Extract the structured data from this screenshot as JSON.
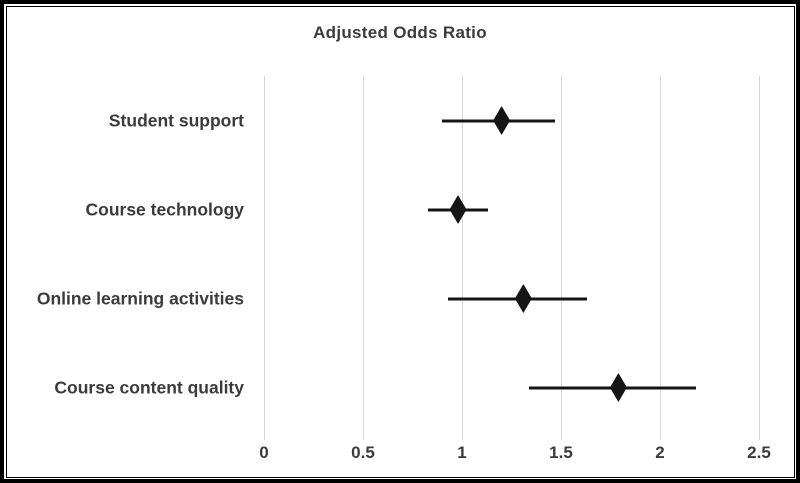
{
  "title": "Adjusted Odds Ratio",
  "colors": {
    "background": "#ffffff",
    "frame_border": "#000000",
    "gridline": "#d8d8d8",
    "text": "#3b3b3b",
    "marker": "#151515"
  },
  "chart_data": {
    "type": "scatter",
    "variant": "forest-plot",
    "title": "Adjusted Odds Ratio",
    "categories": [
      "Student support",
      "Course technology",
      "Online learning activities",
      "Course content quality"
    ],
    "series": [
      {
        "name": "Adjusted odds ratio with 95% CI",
        "values": [
          1.2,
          0.98,
          1.31,
          1.79
        ],
        "ci_low": [
          0.9,
          0.83,
          0.93,
          1.34
        ],
        "ci_high": [
          1.47,
          1.13,
          1.63,
          2.18
        ]
      }
    ],
    "xlabel": "",
    "ylabel": "",
    "xlim": [
      0,
      2.5
    ],
    "xticks": [
      0,
      0.5,
      1,
      1.5,
      2,
      2.5
    ],
    "xtick_labels": [
      "0",
      "0.5",
      "1",
      "1.5",
      "2",
      "2.5"
    ],
    "grid": "vertical-only",
    "legend": "none",
    "marker_shape": "diamond"
  }
}
